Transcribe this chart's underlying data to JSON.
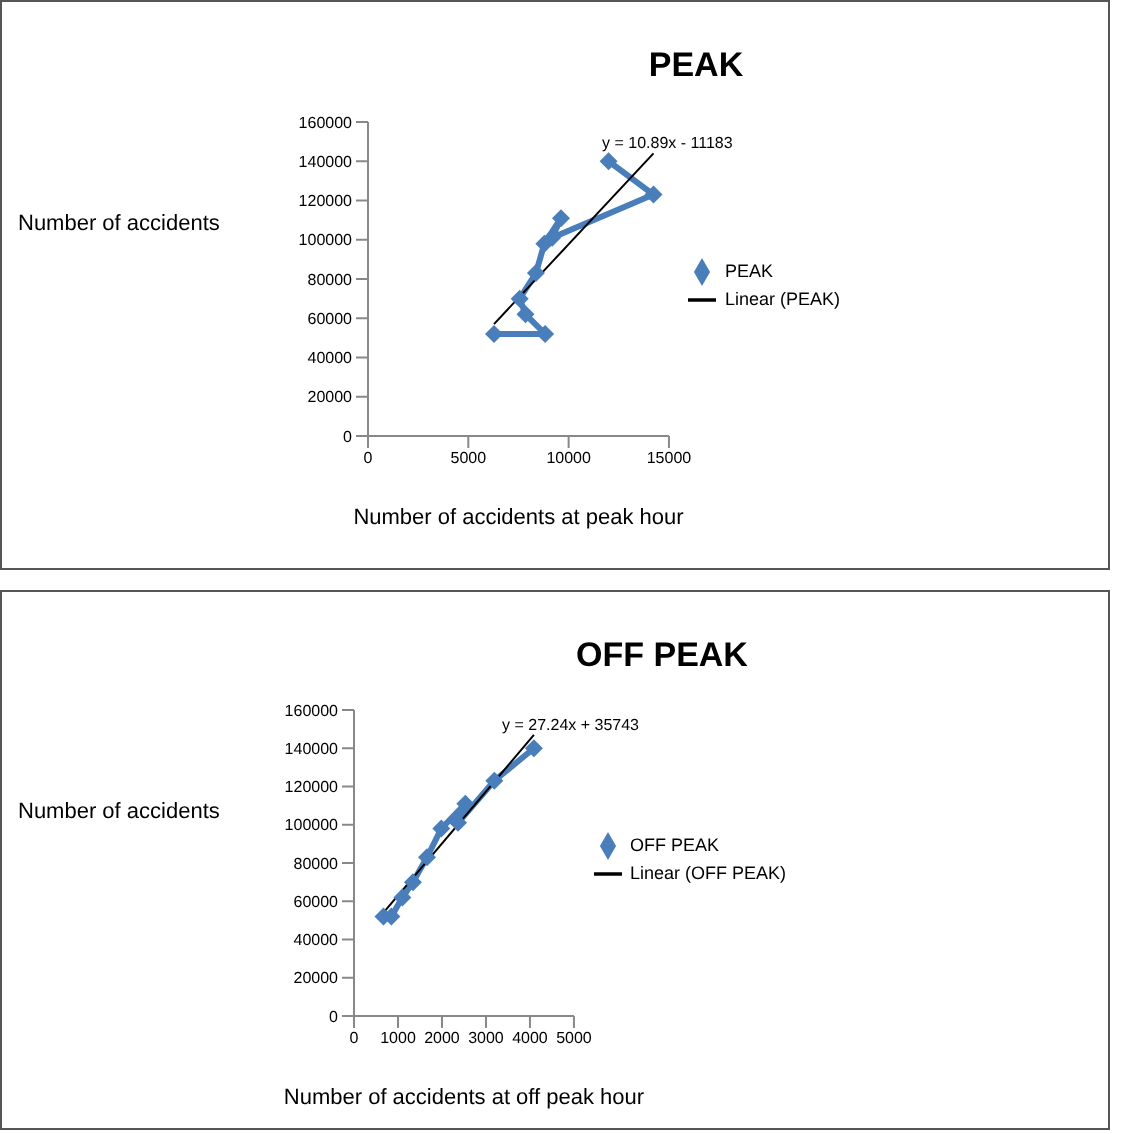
{
  "chart_data": [
    {
      "type": "line",
      "title": "PEAK",
      "xlabel": "Number of accidents at peak hour",
      "ylabel": "Number of accidents",
      "xlim": [
        0,
        15000
      ],
      "xticks": [
        0,
        5000,
        10000,
        15000
      ],
      "ylim": [
        0,
        160000
      ],
      "yticks": [
        0,
        20000,
        40000,
        60000,
        80000,
        100000,
        120000,
        140000,
        160000
      ],
      "legend": "right",
      "marker": "diamond",
      "annotations": [
        "y = 10.89x - 11183"
      ],
      "series": [
        {
          "name": "PEAK",
          "color": "#4a7ebb",
          "x": [
            6280,
            8830,
            7850,
            7560,
            8370,
            8790,
            9620,
            9180,
            14230,
            11990
          ],
          "values": [
            52000,
            52000,
            62000,
            70000,
            83000,
            98000,
            111000,
            101000,
            123000,
            140000
          ]
        },
        {
          "name": "Linear (PEAK)",
          "type": "line",
          "marker": "none",
          "color": "#000000",
          "x": [
            6280,
            14230
          ],
          "values": [
            57000,
            144000
          ]
        }
      ]
    },
    {
      "type": "line",
      "title": "OFF PEAK",
      "xlabel": "Number of accidents at off peak hour",
      "ylabel": "Number of accidents",
      "xlim": [
        0,
        5000
      ],
      "xticks": [
        0,
        1000,
        2000,
        3000,
        4000,
        5000
      ],
      "ylim": [
        0,
        160000
      ],
      "yticks": [
        0,
        20000,
        40000,
        60000,
        80000,
        100000,
        120000,
        140000,
        160000
      ],
      "legend": "right",
      "marker": "diamond",
      "annotations": [
        "y = 27.24x + 35743"
      ],
      "series": [
        {
          "name": "OFF PEAK",
          "color": "#4a7ebb",
          "x": [
            670,
            850,
            1100,
            1340,
            1660,
            1985,
            2530,
            2365,
            3190,
            4090
          ],
          "values": [
            52000,
            52000,
            62000,
            70000,
            83000,
            98000,
            111000,
            101000,
            123000,
            140000
          ]
        },
        {
          "name": "Linear (OFF PEAK)",
          "type": "line",
          "marker": "none",
          "color": "#000000",
          "x": [
            670,
            4090
          ],
          "values": [
            54000,
            147000
          ]
        }
      ]
    }
  ]
}
